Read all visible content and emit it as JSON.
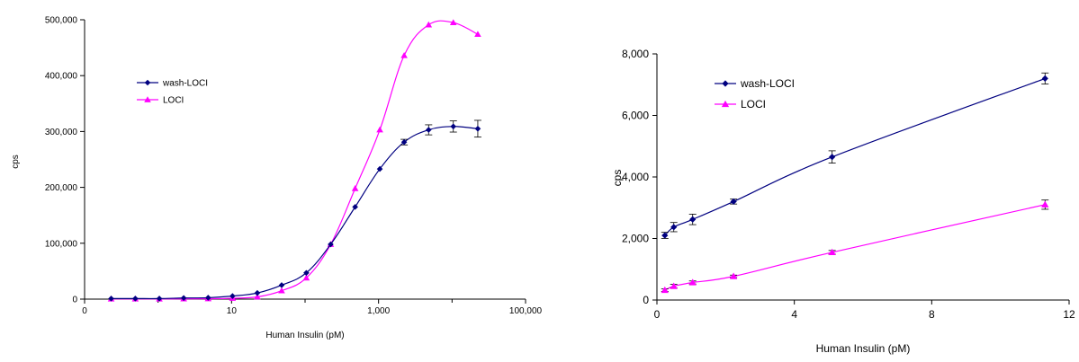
{
  "chart_data": [
    {
      "type": "line",
      "xscale": "log",
      "xlabel": "Human Insulin (pM)",
      "ylabel": "cps",
      "xlim": [
        0.1,
        100000
      ],
      "ylim": [
        0,
        500000
      ],
      "x_ticks": [
        0.1,
        10,
        1000,
        100000
      ],
      "x_tick_labels": [
        "0",
        "10",
        "1,000",
        "100,000"
      ],
      "y_ticks": [
        0,
        100000,
        200000,
        300000,
        400000,
        500000
      ],
      "y_tick_labels": [
        "0",
        "100,000",
        "200,000",
        "300,000",
        "400,000",
        "500,000"
      ],
      "grid": false,
      "legend": "upper-left",
      "series": [
        {
          "name": "wash-LOCI",
          "color": "#000080",
          "marker": "diamond",
          "x": [
            0.23,
            0.49,
            1.04,
            2.23,
            4.8,
            10.3,
            22.4,
            48,
            104,
            223,
            480,
            1040,
            2230,
            4800,
            10400,
            22400
          ],
          "y": [
            1000,
            1000,
            1000,
            2000,
            2500,
            5500,
            11000,
            25000,
            47000,
            98000,
            165000,
            233000,
            281000,
            303000,
            309000,
            305000
          ],
          "err": [
            0,
            0,
            0,
            0,
            0,
            0,
            0,
            0,
            0,
            0,
            0,
            0,
            5000,
            9000,
            10000,
            15000
          ]
        },
        {
          "name": "LOCI",
          "color": "#ff00ff",
          "marker": "triangle",
          "x": [
            0.23,
            0.49,
            1.04,
            2.23,
            4.8,
            10.3,
            22.4,
            48,
            104,
            223,
            480,
            1040,
            2230,
            4800,
            10400,
            22400
          ],
          "y": [
            300,
            300,
            400,
            500,
            700,
            1500,
            4000,
            15000,
            38000,
            98000,
            198000,
            303000,
            436000,
            491000,
            495000,
            474000
          ],
          "err": [
            0,
            0,
            0,
            0,
            0,
            0,
            0,
            0,
            0,
            0,
            0,
            0,
            0,
            0,
            0,
            0
          ]
        }
      ]
    },
    {
      "type": "line",
      "xscale": "linear",
      "xlabel": "Human Insulin (pM)",
      "ylabel": "cps",
      "xlim": [
        0,
        12
      ],
      "ylim": [
        0,
        8000
      ],
      "x_ticks": [
        0,
        4,
        8,
        12
      ],
      "x_tick_labels": [
        "0",
        "4",
        "8",
        "12"
      ],
      "y_ticks": [
        0,
        2000,
        4000,
        6000,
        8000
      ],
      "y_tick_labels": [
        "0",
        "2,000",
        "4,000",
        "6,000",
        "8,000"
      ],
      "grid": false,
      "legend": "upper-left",
      "series": [
        {
          "name": "wash-LOCI",
          "color": "#000080",
          "marker": "diamond",
          "x": [
            0.23,
            0.49,
            1.04,
            2.23,
            5.1,
            11.3
          ],
          "y": [
            2100,
            2370,
            2620,
            3200,
            4650,
            7200
          ],
          "err": [
            100,
            150,
            170,
            80,
            200,
            180
          ]
        },
        {
          "name": "LOCI",
          "color": "#ff00ff",
          "marker": "triangle",
          "x": [
            0.23,
            0.49,
            1.04,
            2.23,
            5.1,
            11.3
          ],
          "y": [
            320,
            450,
            570,
            770,
            1550,
            3100
          ],
          "err": [
            40,
            60,
            50,
            40,
            60,
            150
          ]
        }
      ]
    }
  ]
}
